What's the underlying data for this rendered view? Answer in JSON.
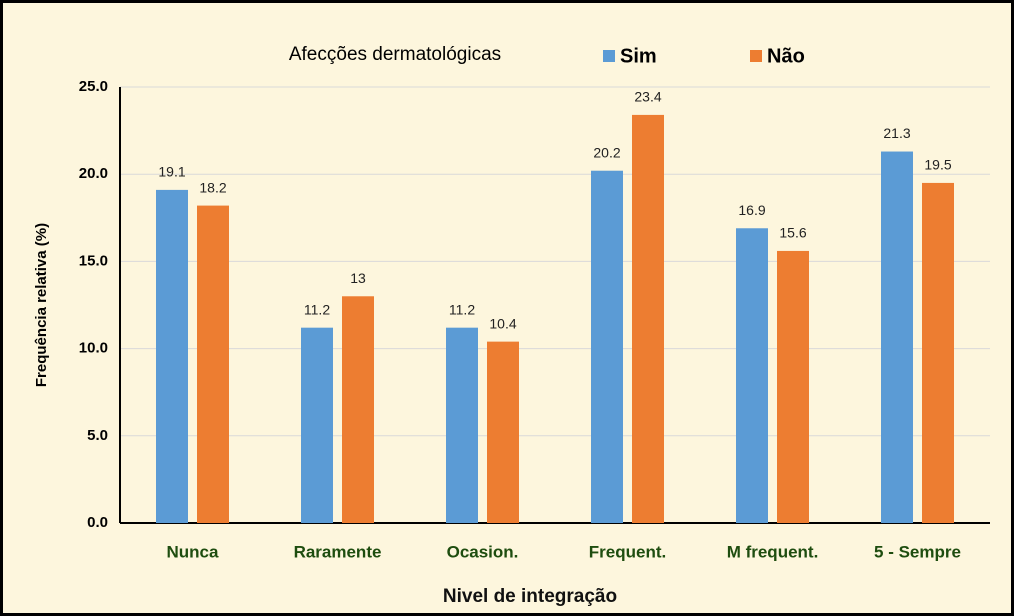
{
  "chart_data": {
    "type": "bar",
    "title": "Afecções dermatológicas",
    "xlabel": "Nivel de integração",
    "ylabel": "Frequência relativa (%)",
    "categories": [
      "Nunca",
      "Raramente",
      "Ocasion.",
      "Frequent.",
      "M frequent.",
      "5 - Sempre"
    ],
    "series": [
      {
        "name": "Sim",
        "color": "#5b9bd5",
        "values": [
          19.1,
          11.2,
          11.2,
          20.2,
          16.9,
          21.3
        ]
      },
      {
        "name": "Não",
        "color": "#ed7d31",
        "values": [
          18.2,
          13,
          10.4,
          23.4,
          15.6,
          19.5
        ]
      }
    ],
    "ylim": [
      0,
      25
    ],
    "yticks": [
      {
        "value": 0,
        "label": "0.0"
      },
      {
        "value": 5,
        "label": "5.0"
      },
      {
        "value": 10,
        "label": "10.0"
      },
      {
        "value": 15,
        "label": "15.0"
      },
      {
        "value": 20,
        "label": "20.0"
      },
      {
        "value": 25,
        "label": "25.0"
      }
    ],
    "grid": true,
    "legend": "top"
  }
}
